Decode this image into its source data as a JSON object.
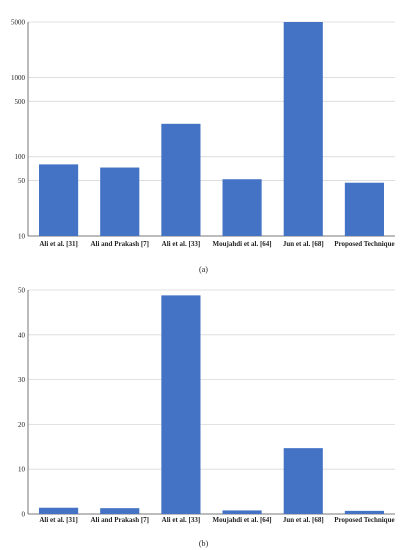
{
  "chart_data": [
    {
      "type": "bar",
      "caption": "(a)",
      "yscale": "log",
      "ylim": [
        10,
        5000
      ],
      "yticks": [
        "10",
        "50",
        "100",
        "500",
        "1000",
        "5000"
      ],
      "grid": true,
      "bar_color": "#4472c4",
      "categories": [
        "Ali et al. [31]",
        "Ali and Prakash [7]",
        "Ali et al. [33]",
        "Moujahdi et al. [64]",
        "Jun et al. [68]",
        "Proposed Technique"
      ],
      "values": [
        80,
        73,
        260,
        52,
        5000,
        47
      ]
    },
    {
      "type": "bar",
      "caption": "(b)",
      "yscale": "linear",
      "ylim": [
        0,
        50
      ],
      "yticks": [
        "0",
        "10",
        "20",
        "30",
        "40",
        "50"
      ],
      "grid": true,
      "bar_color": "#4472c4",
      "categories": [
        "Ali et al. [31]",
        "Ali and Prakash [7]",
        "Ali et al. [33]",
        "Moujahdi et al. [64]",
        "Jun et al. [68]",
        "Proposed Technique"
      ],
      "values": [
        1.4,
        1.3,
        48.8,
        0.8,
        14.7,
        0.7
      ]
    }
  ]
}
